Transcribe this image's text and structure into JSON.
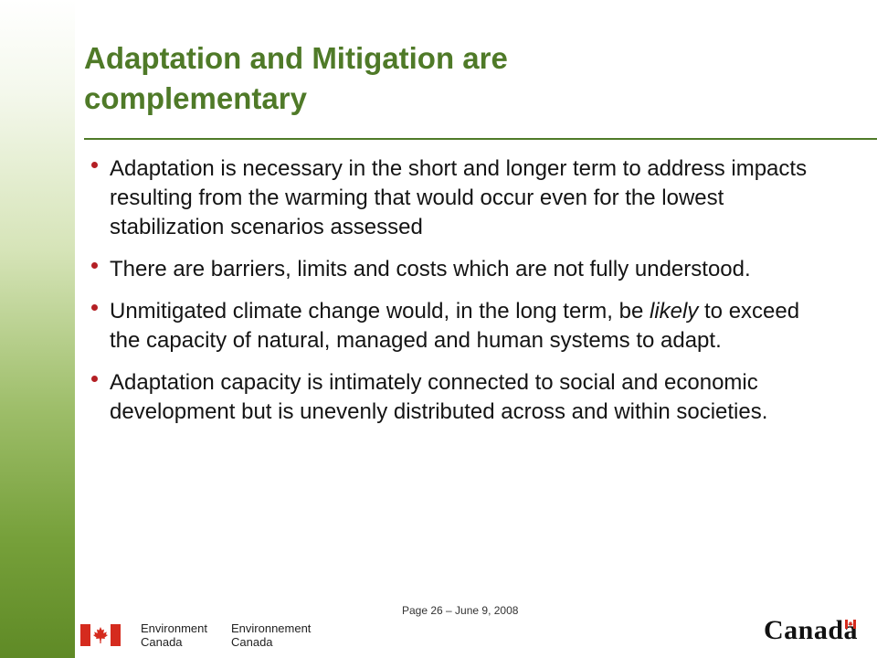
{
  "slide": {
    "title_line1": "Adaptation and Mitigation are",
    "title_line2": "complementary",
    "bullets": [
      {
        "text": "Adaptation is necessary in the short and longer term to address impacts resulting from the warming that would occur even for the lowest stabilization scenarios assessed"
      },
      {
        "text": "There are barriers, limits and costs which are not fully understood."
      },
      {
        "text_before": "Unmitigated climate change would, in the long term, be ",
        "text_italic": "likely",
        "text_after": " to exceed the capacity of natural, managed and human systems to adapt."
      },
      {
        "text": "Adaptation capacity is intimately connected to social and economic development but is unevenly distributed across and within societies."
      }
    ]
  },
  "footer": {
    "page_info": "Page 26 – June 9, 2008",
    "dept_en_line1": "Environment",
    "dept_en_line2": "Canada",
    "dept_fr_line1": "Environnement",
    "dept_fr_line2": "Canada",
    "wordmark": "Canada"
  },
  "colors": {
    "title": "#4f7a28",
    "bullet": "#b41f24",
    "flag_red": "#d52b1e",
    "sidebar_dark": "#5f8a26"
  }
}
